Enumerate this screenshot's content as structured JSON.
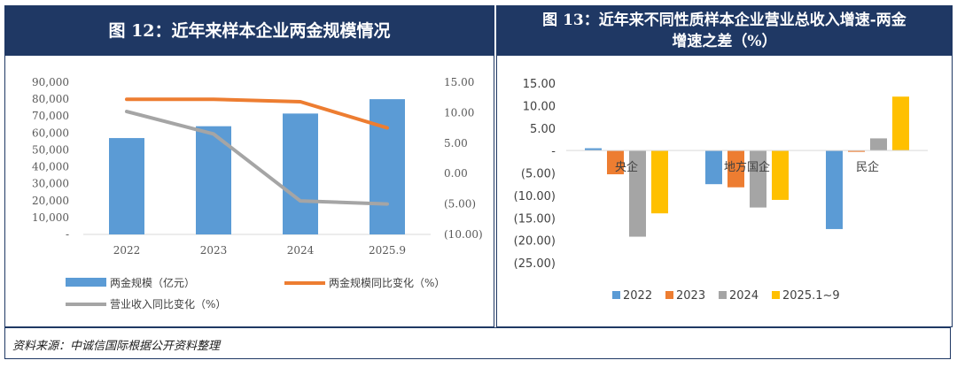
{
  "colors": {
    "navy": "#1f3864",
    "blue": "#5b9bd5",
    "orange": "#ed7d31",
    "gray": "#a5a5a5",
    "yellow": "#ffc000"
  },
  "source": "资料来源：中诚信国际根据公开资料整理",
  "chart_data": [
    {
      "type": "bar",
      "title": "图 12：近年来样本企业两金规模情况",
      "categories": [
        "2022",
        "2023",
        "2024",
        "2025.9"
      ],
      "bar_series": {
        "name": "两金规模（亿元）",
        "values": [
          57000,
          64000,
          71500,
          80000
        ]
      },
      "line_series": [
        {
          "name": "两金规模同比变化（%）",
          "values": [
            12.2,
            12.2,
            11.8,
            7.5
          ]
        },
        {
          "name": "营业收入同比变化（%）",
          "values": [
            10.2,
            6.5,
            -4.5,
            -5.0
          ]
        }
      ],
      "y_left": {
        "min": 0,
        "max": 90000,
        "ticks": [
          "90,000",
          "80,000",
          "70,000",
          "60,000",
          "50,000",
          "40,000",
          "30,000",
          "20,000",
          "10,000",
          "-"
        ]
      },
      "y_right": {
        "min": -10,
        "max": 15,
        "ticks": [
          "15.00",
          "10.00",
          "5.00",
          "0.00",
          "(5.00)",
          "(10.00)"
        ]
      }
    },
    {
      "type": "bar",
      "title": "图 13：近年来不同性质样本企业营业总收入增速-两金增速之差（%）",
      "title_lines": [
        "图 13：近年来不同性质样本企业营业总收入增速-两金",
        "增速之差（%）"
      ],
      "categories": [
        "央企",
        "地方国企",
        "民企"
      ],
      "series": [
        {
          "name": "2022",
          "values": [
            0.5,
            -7.5,
            -17.5
          ]
        },
        {
          "name": "2023",
          "values": [
            -5.3,
            -8.2,
            -0.3
          ]
        },
        {
          "name": "2024",
          "values": [
            -19.2,
            -12.7,
            2.7
          ]
        },
        {
          "name": "2025.1~9",
          "values": [
            -14.0,
            -11.0,
            12.0
          ]
        }
      ],
      "y": {
        "min": -25,
        "max": 15,
        "ticks": [
          "15.00",
          "10.00",
          "5.00",
          "-",
          "(5.00)",
          "(10.00)",
          "(15.00)",
          "(20.00)",
          "(25.00)"
        ]
      }
    }
  ]
}
